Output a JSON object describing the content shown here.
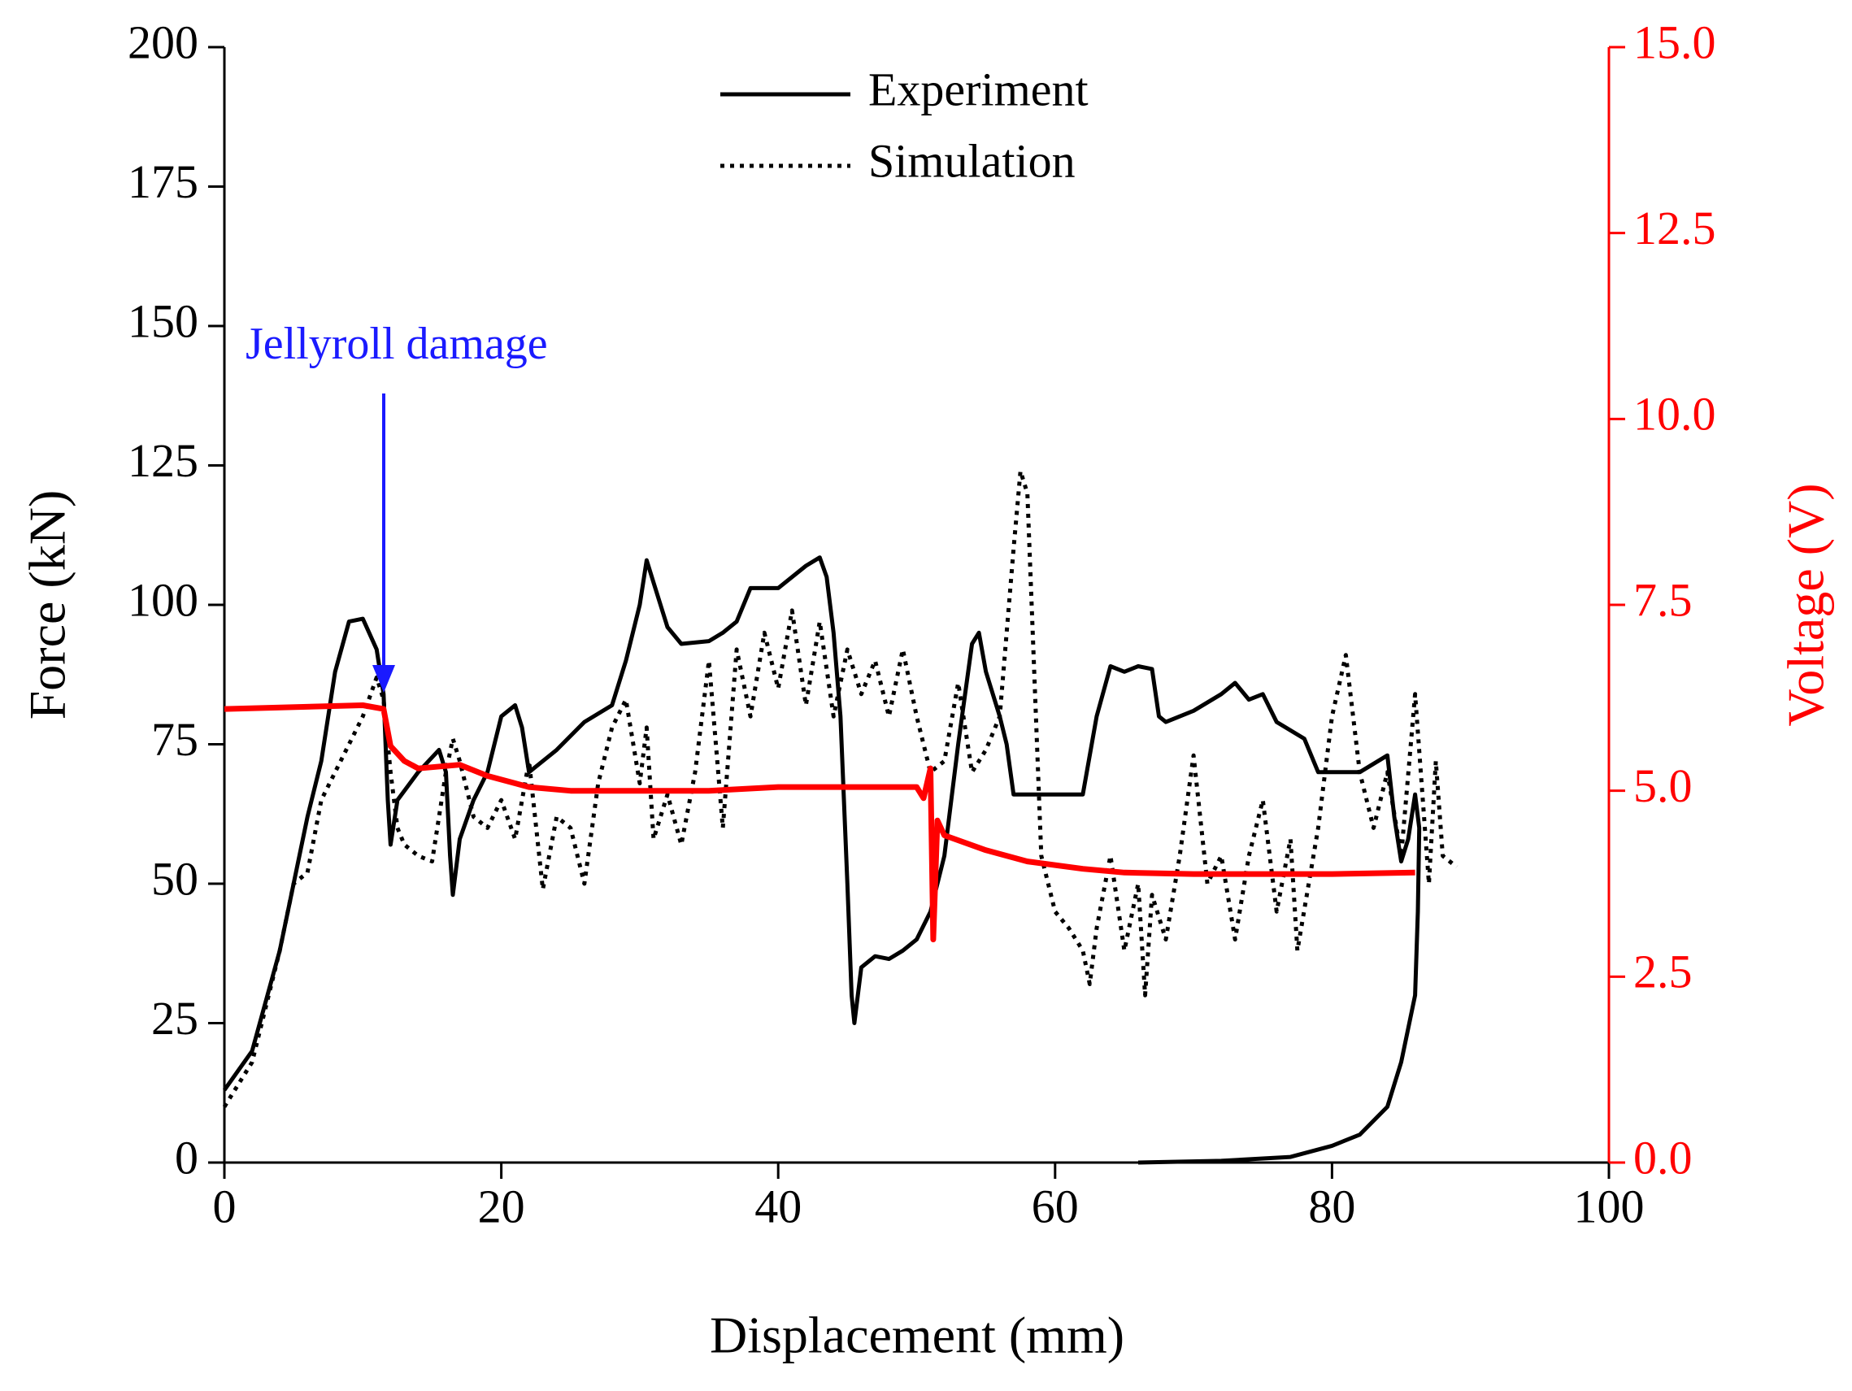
{
  "chart_data": {
    "type": "line",
    "xlabel": "Displacement (mm)",
    "ylabel": "Force (kN)",
    "y2label": "Voltage (V)",
    "xlim": [
      0,
      100
    ],
    "xticks": [
      0,
      20,
      40,
      60,
      80,
      100
    ],
    "ylim": [
      0,
      200
    ],
    "yticks": [
      0,
      25,
      50,
      75,
      100,
      125,
      150,
      175,
      200
    ],
    "y2lim": [
      0,
      15
    ],
    "y2ticks": [
      {
        "value": 0,
        "label": "0.0"
      },
      2.5,
      {
        "value": 5,
        "label": "5.0"
      },
      7.5,
      {
        "value": 10,
        "label": "10.0"
      },
      12.5,
      {
        "value": 15,
        "label": "15.0"
      }
    ],
    "y2color": "#ff0000",
    "annotations": [
      {
        "text": "Jellyroll damage",
        "color": "#1a1aff"
      }
    ],
    "series": [
      {
        "name": "Experiment",
        "color": "#000000",
        "style": "solid",
        "x": [
          0,
          2,
          4,
          6,
          7,
          8,
          9,
          10,
          11,
          11.5,
          11.8,
          12,
          12.5,
          14,
          15.5,
          16,
          16.3,
          16.5,
          17,
          18,
          19,
          20,
          21,
          21.5,
          22,
          24,
          26,
          28,
          29,
          30,
          30.5,
          31,
          32,
          33,
          35,
          36,
          37,
          38,
          40,
          42,
          43,
          43.5,
          44,
          44.5,
          45,
          45.3,
          45.5,
          46,
          47,
          48,
          49,
          50,
          51,
          52,
          53,
          54,
          54.5,
          55,
          56,
          56.5,
          57,
          58,
          62,
          63,
          64,
          65,
          66,
          67,
          67.5,
          68,
          70,
          72,
          73,
          74,
          75,
          76,
          78,
          79,
          80,
          82,
          84,
          84.5,
          85,
          85.5,
          86,
          86.3,
          86.2,
          86,
          85,
          84,
          82,
          80,
          77,
          72,
          66
        ],
        "values": [
          13,
          20,
          38,
          62,
          72,
          88,
          97,
          97.5,
          92,
          84,
          65,
          57,
          65,
          70,
          74,
          70,
          55,
          48,
          58,
          65,
          70,
          80,
          82,
          78,
          70,
          74,
          79,
          82,
          90,
          100,
          108,
          104,
          96,
          93,
          93.5,
          95,
          97,
          103,
          103,
          107,
          108.5,
          105,
          95,
          80,
          50,
          30,
          25,
          35,
          37,
          36.5,
          38,
          40,
          45,
          55,
          75,
          93,
          95,
          88,
          80,
          75,
          66,
          66,
          66,
          80,
          89,
          88,
          89,
          88.5,
          80,
          79,
          81,
          84,
          86,
          83,
          84,
          79,
          76,
          70,
          70,
          70,
          73,
          62,
          54,
          58,
          66,
          60,
          45,
          30,
          18,
          10,
          5,
          3,
          1,
          0.3,
          0
        ]
      },
      {
        "name": "Simulation",
        "color": "#000000",
        "style": "dotted",
        "x": [
          0,
          2,
          4,
          5,
          6,
          7,
          8,
          9,
          10,
          11,
          11.5,
          12,
          12.5,
          13,
          14,
          15,
          16,
          16.5,
          17,
          18,
          19,
          20,
          21,
          22,
          23,
          24,
          25,
          26,
          27,
          28,
          29,
          30,
          30.5,
          31,
          32,
          33,
          34,
          35,
          36,
          37,
          38,
          39,
          40,
          41,
          42,
          43,
          44,
          45,
          46,
          47,
          48,
          49,
          50,
          51,
          52,
          53,
          54,
          55,
          56,
          57,
          57.5,
          58,
          59,
          60,
          61,
          62,
          62.5,
          63,
          64,
          65,
          66,
          66.5,
          67,
          68,
          69,
          70,
          71,
          72,
          73,
          74,
          75,
          76,
          77,
          77.5,
          79,
          80,
          81,
          82,
          83,
          84,
          85,
          86,
          87,
          87.5,
          88,
          89
        ],
        "values": [
          10,
          18,
          38,
          50,
          52,
          65,
          70,
          75,
          80,
          87,
          83,
          70,
          60,
          57,
          55,
          54,
          70,
          76,
          72,
          62,
          60,
          65,
          58,
          72,
          49,
          62,
          60,
          50,
          68,
          78,
          83,
          68,
          78,
          58,
          66,
          57,
          70,
          90,
          60,
          92,
          80,
          95,
          85,
          99,
          82,
          97,
          80,
          92,
          84,
          90,
          80,
          92,
          80,
          70,
          72,
          86,
          70,
          74,
          80,
          110,
          124,
          120,
          55,
          45,
          42,
          38,
          32,
          42,
          55,
          38,
          50,
          30,
          48,
          40,
          55,
          73,
          50,
          55,
          40,
          55,
          65,
          45,
          58,
          38,
          60,
          80,
          91,
          70,
          60,
          70,
          55,
          84,
          50,
          72,
          55,
          53
        ]
      },
      {
        "color": "#ff0000",
        "style": "solid",
        "axis": "y2",
        "x": [
          0,
          10,
          11.5,
          12,
          13,
          14,
          17,
          19,
          22,
          25,
          35,
          40,
          50,
          50.5,
          51,
          51.2,
          51.5,
          52,
          55,
          58,
          62,
          65,
          70,
          80,
          86
        ],
        "values": [
          6.1,
          6.15,
          6.1,
          5.6,
          5.4,
          5.3,
          5.35,
          5.2,
          5.05,
          5.0,
          5.0,
          5.05,
          5.05,
          4.9,
          5.3,
          3.0,
          4.6,
          4.4,
          4.2,
          4.05,
          3.95,
          3.9,
          3.88,
          3.88,
          3.9
        ]
      }
    ]
  }
}
